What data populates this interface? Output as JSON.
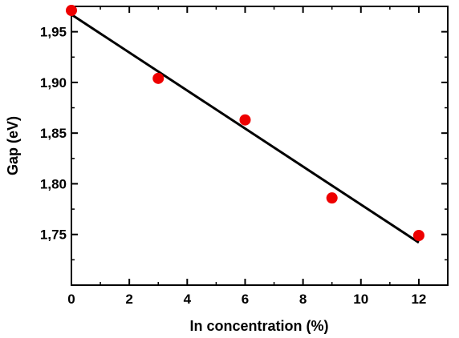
{
  "chart_data": {
    "type": "scatter",
    "title": "",
    "xlabel": "In concentration (%)",
    "ylabel": "Gap (eV)",
    "xlim": [
      0,
      13
    ],
    "ylim": [
      1.7,
      1.975
    ],
    "x_ticks": [
      0,
      2,
      4,
      6,
      8,
      10,
      12
    ],
    "x_tick_labels": [
      "0",
      "2",
      "4",
      "6",
      "8",
      "10",
      "12"
    ],
    "y_ticks": [
      1.75,
      1.8,
      1.85,
      1.9,
      1.95
    ],
    "y_tick_labels": [
      "1,75",
      "1,80",
      "1,85",
      "1,90",
      "1,95"
    ],
    "grid": false,
    "legend": "none",
    "series": [
      {
        "kind": "points",
        "color": "#ee0000",
        "x": [
          0,
          3,
          6,
          9,
          12
        ],
        "y": [
          1.971,
          1.904,
          1.863,
          1.786,
          1.749
        ]
      },
      {
        "kind": "fit-line",
        "color": "#000000",
        "x": [
          0,
          12
        ],
        "y": [
          1.967,
          1.742
        ]
      }
    ]
  }
}
